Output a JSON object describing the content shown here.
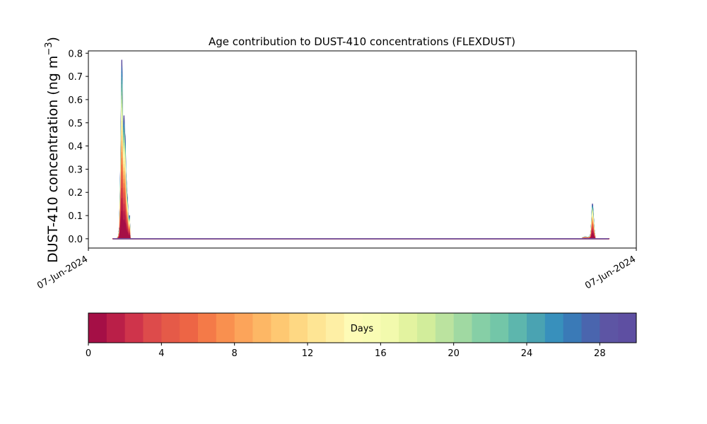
{
  "chart_data": {
    "type": "area",
    "title": "Age contribution to DUST-410 concentrations (FLEXDUST)",
    "ylabel_main": "DUST-410 concentration (ng m",
    "ylabel_exp": "−3",
    "ylabel_close": ")",
    "ylim": [
      -0.04,
      0.81
    ],
    "y_ticks": [
      "0.0",
      "0.1",
      "0.2",
      "0.3",
      "0.4",
      "0.5",
      "0.6",
      "0.7",
      "0.8"
    ],
    "y_tick_values": [
      0.0,
      0.1,
      0.2,
      0.3,
      0.4,
      0.5,
      0.6,
      0.7,
      0.8
    ],
    "x_ticks": [
      "07-Jun-2024",
      "07-Jun-2024"
    ],
    "x_tick_positions": [
      0,
      1
    ],
    "grid": false,
    "total_series": {
      "x": [
        0.045,
        0.05,
        0.052,
        0.055,
        0.057,
        0.059,
        0.06,
        0.0605,
        0.061,
        0.0615,
        0.062,
        0.063,
        0.064,
        0.065,
        0.066,
        0.067,
        0.068,
        0.069,
        0.07,
        0.071,
        0.072,
        0.073,
        0.074,
        0.0745,
        0.075,
        0.0755,
        0.076,
        0.077,
        0.078,
        0.1,
        0.5,
        0.9,
        0.902,
        0.905,
        0.908,
        0.91,
        0.912,
        0.915,
        0.917,
        0.918,
        0.919,
        0.92,
        0.921,
        0.922,
        0.923,
        0.925,
        0.93,
        0.95
      ],
      "y": [
        0.0,
        0.0,
        0.0,
        0.01,
        0.05,
        0.3,
        0.52,
        0.62,
        0.77,
        0.7,
        0.6,
        0.42,
        0.35,
        0.53,
        0.46,
        0.44,
        0.3,
        0.25,
        0.2,
        0.18,
        0.12,
        0.07,
        0.03,
        0.08,
        0.1,
        0.04,
        0.01,
        0.0,
        0.0,
        0.0,
        0.0,
        0.0,
        0.004,
        0.007,
        0.008,
        0.006,
        0.006,
        0.01,
        0.02,
        0.05,
        0.1,
        0.15,
        0.12,
        0.08,
        0.04,
        0.0,
        0.0,
        0.0
      ]
    },
    "colorbar": {
      "label": "Days",
      "range": [
        0,
        30
      ],
      "ticks": [
        0,
        4,
        8,
        12,
        16,
        20,
        24,
        28
      ],
      "tick_labels": [
        "0",
        "4",
        "8",
        "12",
        "16",
        "20",
        "24",
        "28"
      ],
      "colors": [
        "#a50f46",
        "#ba1f48",
        "#cf344b",
        "#dd4b4b",
        "#e55a48",
        "#ed6545",
        "#f47a48",
        "#f9904f",
        "#fca45a",
        "#fdb765",
        "#fec872",
        "#fed883",
        "#fee594",
        "#feefa5",
        "#fefbb6",
        "#f9fcb4",
        "#f2faad",
        "#e3f3a0",
        "#d2ed9b",
        "#bbe39f",
        "#a0d9a2",
        "#86cfa6",
        "#73c6a8",
        "#5db6ad",
        "#4aa3b2",
        "#3890bc",
        "#3a7ab7",
        "#4a65ae",
        "#5d55a4",
        "#5e4fa2"
      ]
    }
  }
}
